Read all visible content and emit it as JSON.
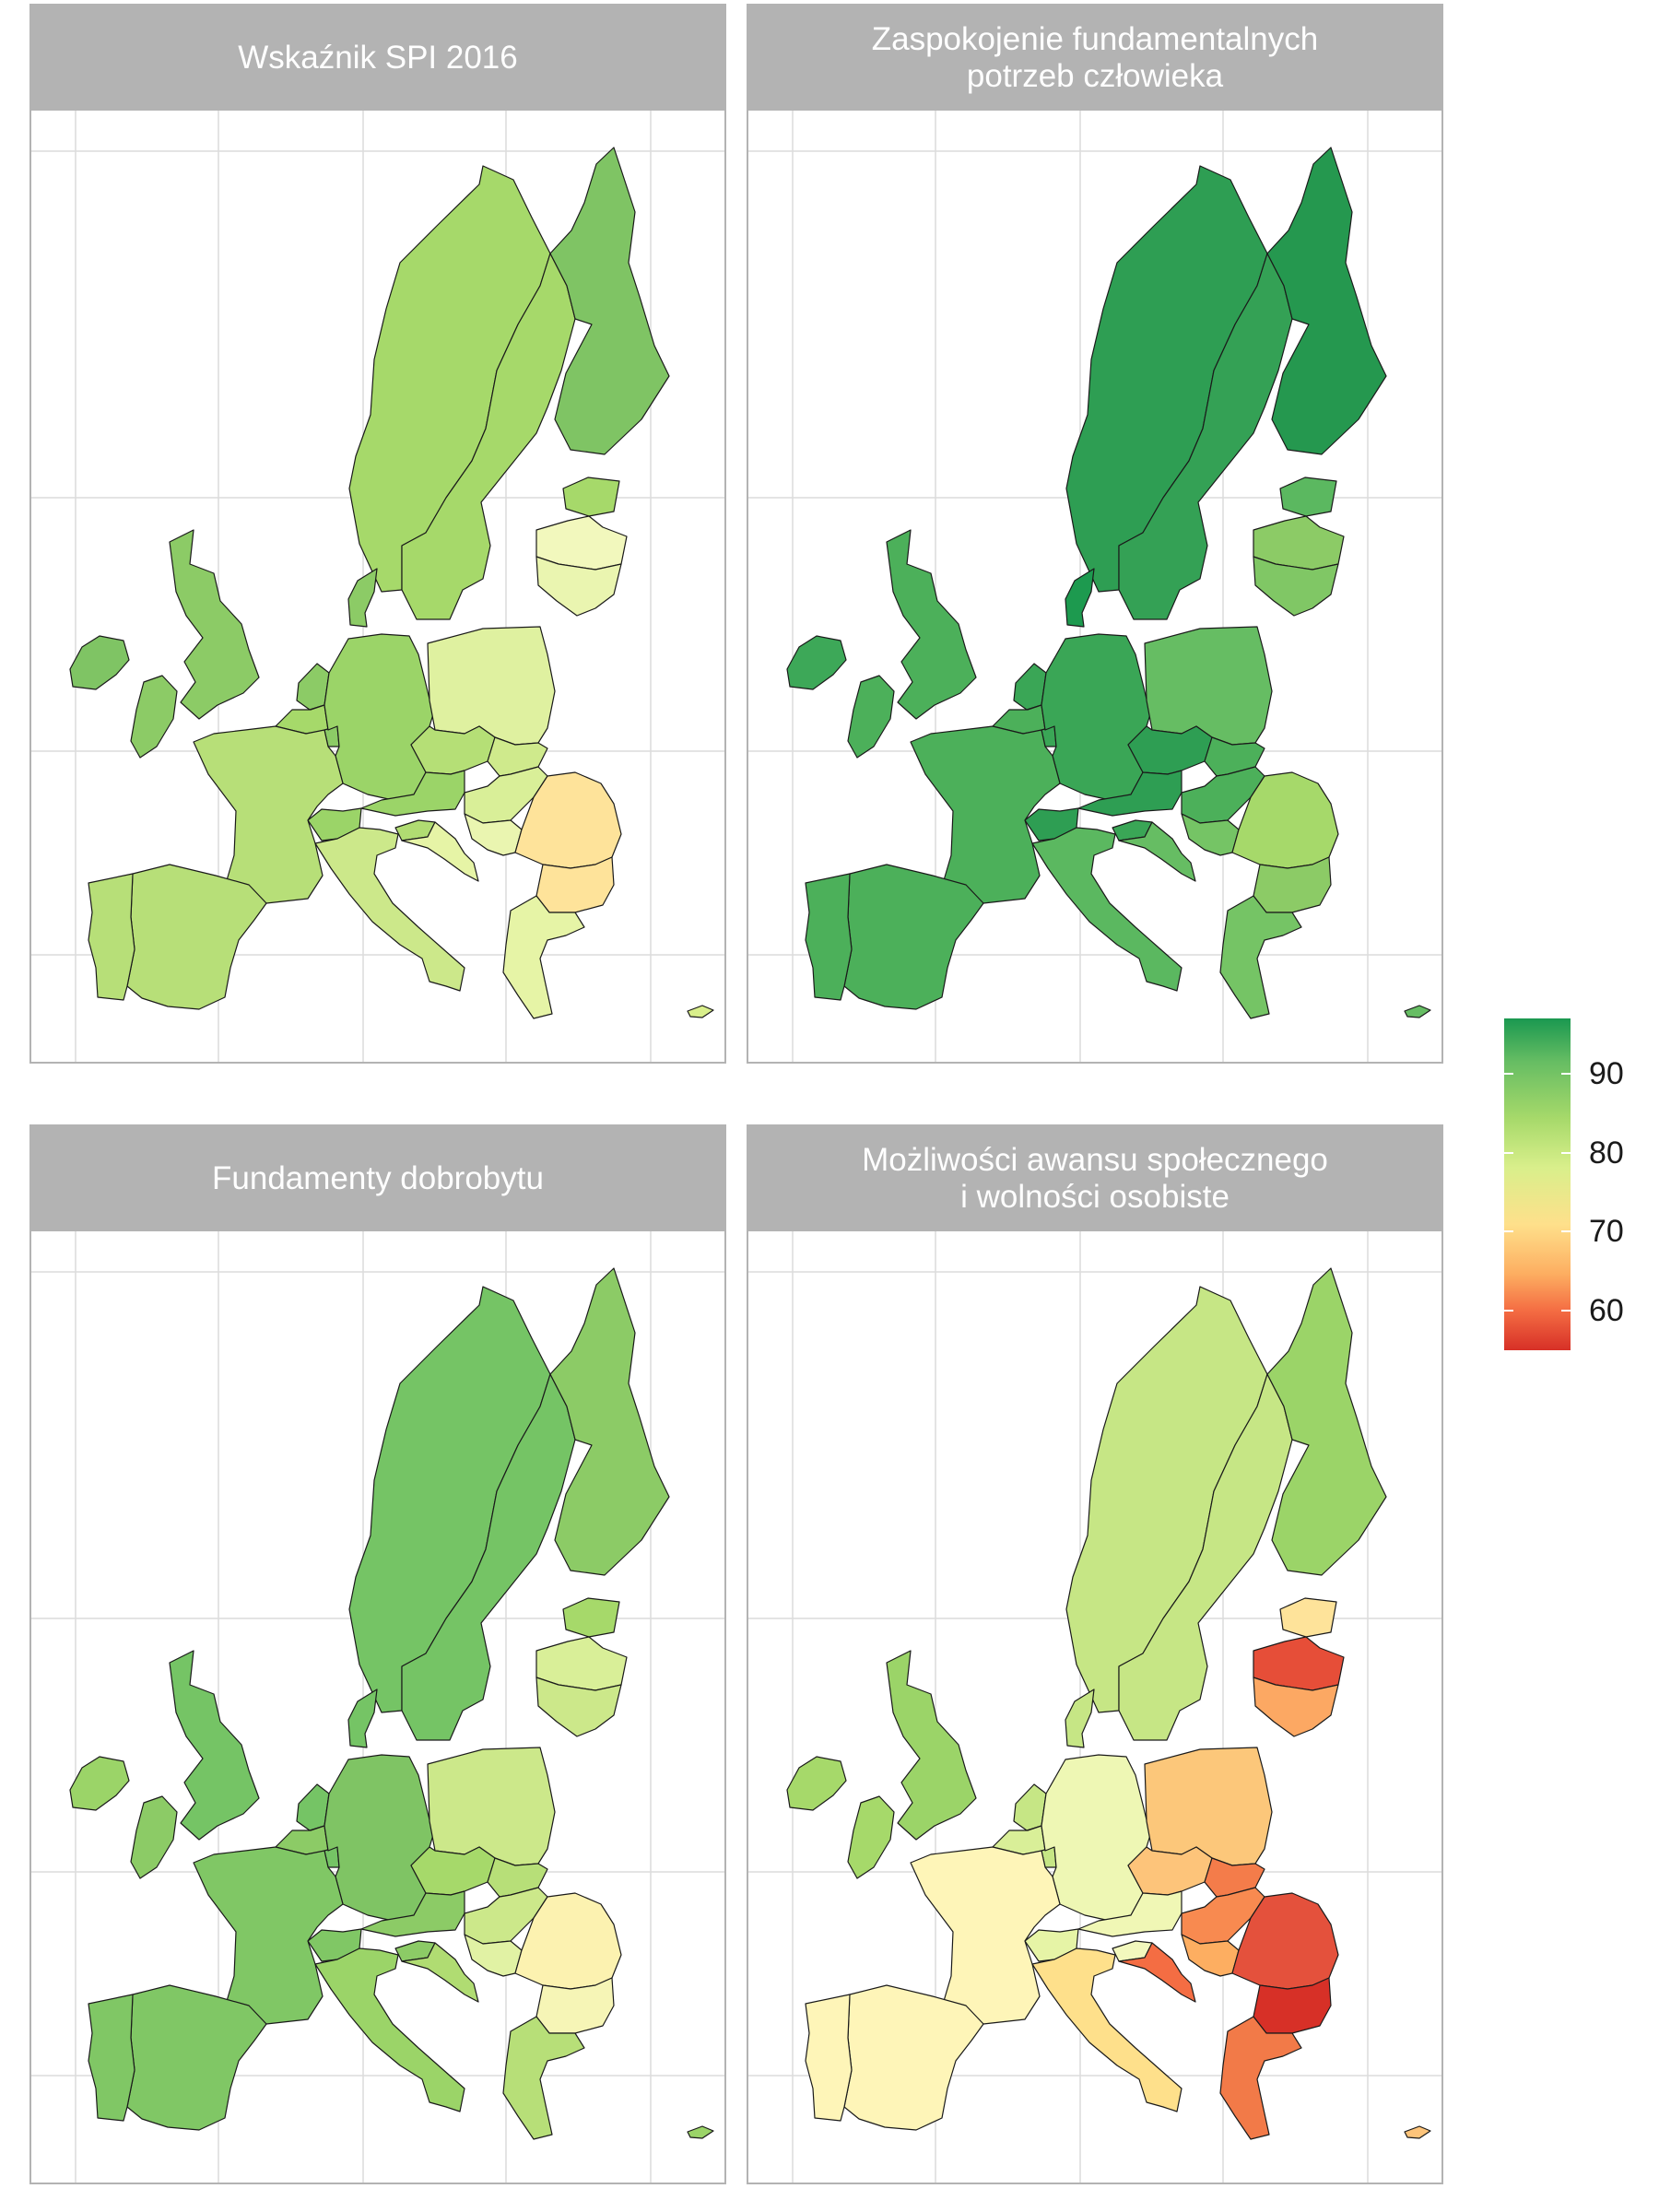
{
  "panels": [
    {
      "title": "Wskaźnik SPI 2016",
      "fills": {
        "IS": "#7fc464",
        "IE": "#8ccb66",
        "GB": "#8ccb66",
        "NO": "#a6d96a",
        "SE": "#a6d96a",
        "FI": "#7fc464",
        "DK": "#8ccb66",
        "NL": "#8ccb66",
        "BE": "#a6d96a",
        "LU": "#8ccb66",
        "DE": "#9bd468",
        "PL": "#dff1a0",
        "CZ": "#b5df76",
        "SK": "#cfea8c",
        "AT": "#9bd468",
        "CH": "#9bd468",
        "FR": "#b7df78",
        "ES": "#b7df78",
        "PT": "#b7df78",
        "IT": "#cce88a",
        "SI": "#b0dc72",
        "HR": "#e6f4a6",
        "HU": "#d9ef98",
        "RS": "#eaf5b0",
        "RO": "#fee39a",
        "BG": "#fee39a",
        "GR": "#e6f4a6",
        "EE": "#a6d96a",
        "LV": "#f2f8bd",
        "LT": "#eaf5b0",
        "CY": "#d9ef8b"
      }
    },
    {
      "title": "Zaspokojenie fundamentalnych\npotrzeb człowieka",
      "fills": {
        "IS": "#3da858",
        "IE": "#4cb05a",
        "GB": "#4cb05a",
        "NO": "#2e9e53",
        "SE": "#34a155",
        "FI": "#25984f",
        "DK": "#1d9a4f",
        "NL": "#3aa656",
        "BE": "#4cb05a",
        "LU": "#3aa656",
        "DE": "#3aa656",
        "PL": "#66bd63",
        "CZ": "#2e9e53",
        "SK": "#4cb05a",
        "AT": "#2e9e53",
        "CH": "#2e9e53",
        "FR": "#4cb05a",
        "ES": "#4cb05a",
        "PT": "#4cb05a",
        "IT": "#5bb860",
        "SI": "#3aa656",
        "HR": "#66bd63",
        "HU": "#4cb05a",
        "RS": "#75c465",
        "RO": "#a6d96a",
        "BG": "#8ccb66",
        "GR": "#75c465",
        "EE": "#5bb860",
        "LV": "#8ccb66",
        "LT": "#80c765",
        "CY": "#66bd63"
      }
    },
    {
      "title": "Fundamenty dobrobytu",
      "fills": {
        "IS": "#9bd468",
        "IE": "#8ccb66",
        "GB": "#75c465",
        "NO": "#75c465",
        "SE": "#75c465",
        "FI": "#8ccb66",
        "DK": "#75c465",
        "NL": "#75c465",
        "BE": "#8ccb66",
        "LU": "#75c465",
        "DE": "#7fc464",
        "PL": "#cce88a",
        "CZ": "#a6d96a",
        "SK": "#b7df78",
        "AT": "#8ccb66",
        "CH": "#80c765",
        "FR": "#80c765",
        "ES": "#80c765",
        "PT": "#80c765",
        "IT": "#9bd468",
        "SI": "#8ccb66",
        "HR": "#b0dc72",
        "HU": "#cce88a",
        "RS": "#e1f2a4",
        "RO": "#fcf2b0",
        "BG": "#f6f5b6",
        "GR": "#b7df78",
        "EE": "#a6d96a",
        "LV": "#d9ef98",
        "LT": "#cce88a",
        "CY": "#9bd468"
      }
    },
    {
      "title": "Możliwości awansu społecznego\ni wolności osobiste",
      "fills": {
        "IS": "#a6d96a",
        "IE": "#a6d96a",
        "GB": "#9bd468",
        "NO": "#c6e685",
        "SE": "#c6e685",
        "FI": "#9bd468",
        "DK": "#c6e685",
        "NL": "#c6e685",
        "BE": "#d9ef98",
        "LU": "#c6e685",
        "DE": "#eef7b4",
        "PL": "#fcc77a",
        "CZ": "#fdc47a",
        "SK": "#f47c4a",
        "AT": "#f0f7b5",
        "CH": "#e6f4a6",
        "FR": "#fef5b8",
        "ES": "#fef5b8",
        "PT": "#fef5b8",
        "IT": "#fee08b",
        "SI": "#f2f8bd",
        "HR": "#f46d43",
        "HU": "#f88a50",
        "RS": "#fdae61",
        "RO": "#e4513c",
        "BG": "#d73027",
        "GR": "#f27a48",
        "EE": "#fee39a",
        "LV": "#e64e38",
        "LT": "#fca863",
        "CY": "#fdc47a"
      }
    }
  ],
  "legend": {
    "labels": [
      "90",
      "80",
      "70",
      "60"
    ],
    "values": [
      90,
      80,
      70,
      60
    ],
    "range": [
      55,
      97
    ]
  }
}
